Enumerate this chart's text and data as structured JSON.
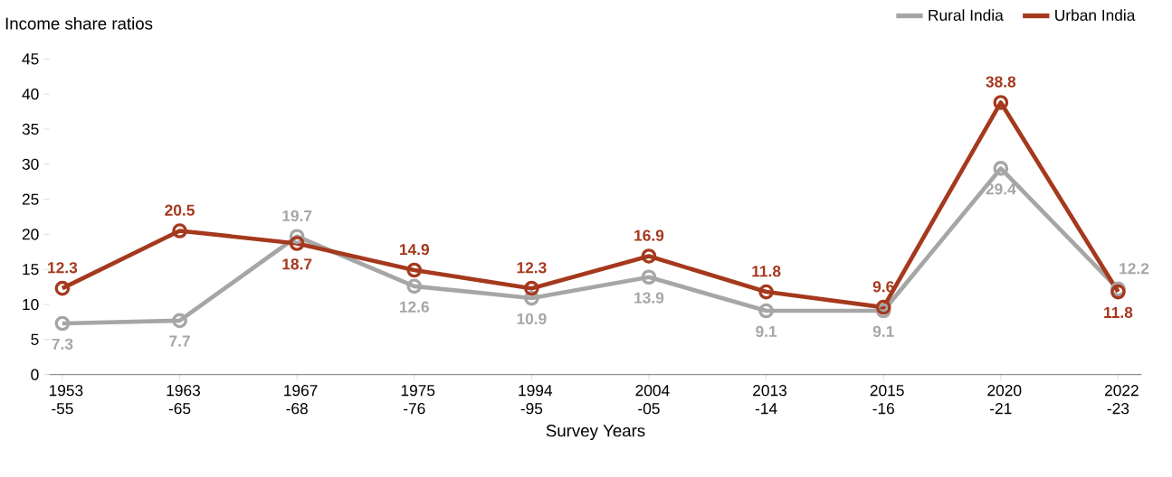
{
  "chart_data": {
    "type": "line",
    "ylabel": "Income share ratios",
    "xlabel": "Survey Years",
    "categories": [
      "1953 -55",
      "1963 -65",
      "1967 -68",
      "1975 -76",
      "1994 -95",
      "2004 -05",
      "2013 -14",
      "2015 -16",
      "2020 -21",
      "2022 -23"
    ],
    "series": [
      {
        "name": "Rural India",
        "color": "#a6a6a6",
        "values": [
          7.3,
          7.7,
          19.7,
          12.6,
          10.9,
          13.9,
          9.1,
          9.1,
          29.4,
          12.2
        ]
      },
      {
        "name": "Urban India",
        "color": "#a5391d",
        "values": [
          12.3,
          20.5,
          18.7,
          14.9,
          12.3,
          16.9,
          11.8,
          9.6,
          38.8,
          11.8
        ]
      }
    ],
    "ylim": [
      0,
      45
    ],
    "yticks": [
      0,
      5,
      10,
      15,
      20,
      25,
      30,
      35,
      40,
      45
    ],
    "data_labels": true,
    "legend": "top right",
    "marker": "circle",
    "line_style": "solid",
    "grid": false
  }
}
